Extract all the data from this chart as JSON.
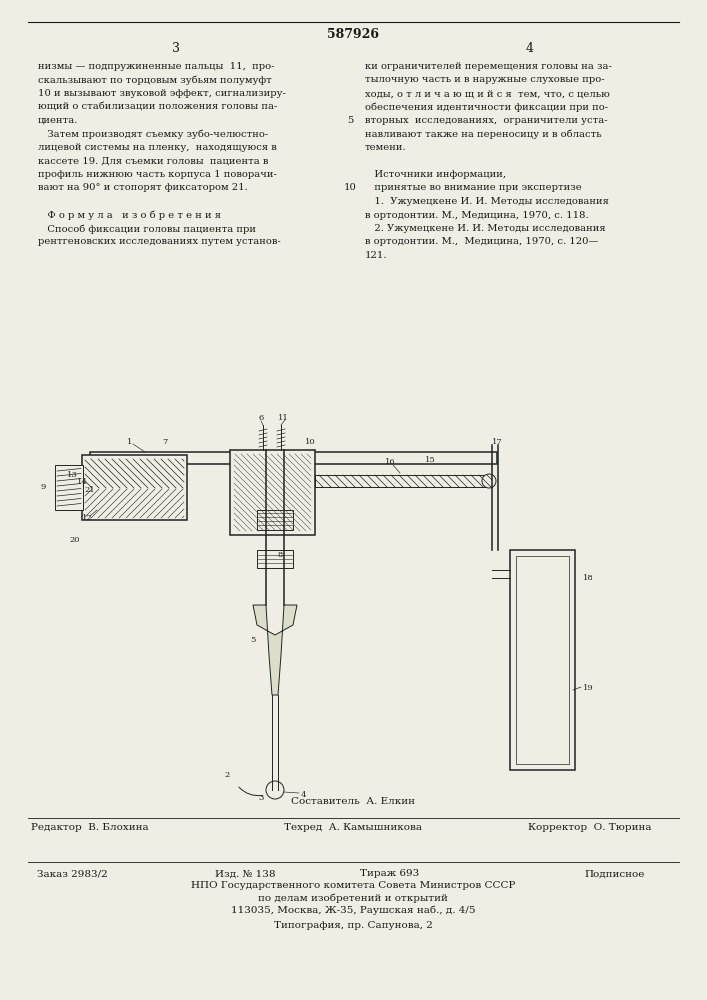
{
  "patent_number": "587926",
  "page_left": "3",
  "page_right": "4",
  "bg_color": "#f0ede4",
  "text_color": "#1a1a1a",
  "col_left_text": [
    "низмы — подпружиненные пальцы  11,  про-",
    "скальзывают по торцовым зубьям полумуфт",
    "10 и вызывают звуковой эффект, сигнализиру-",
    "ющий о стабилизации положения головы па-",
    "циента.",
    "   Затем производят съемку зубо-челюстно-",
    "лицевой системы на пленку,  находящуюся в",
    "кассете 19. Для съемки головы  пациента в",
    "профиль нижнюю часть корпуса 1 поворачи-",
    "вают на 90° и стопорят фиксатором 21.",
    "",
    "   Ф о р м у л а   и з о б р е т е н и я",
    "   Способ фиксации головы пациента при",
    "рентгеновских исследованиях путем установ-"
  ],
  "col_right_text": [
    "ки ограничителей перемещения головы на за-",
    "тылочную часть и в наружные слуховые про-",
    "ходы, о т л и ч а ю щ и й с я  тем, что, с целью",
    "обеспечения идентичности фиксации при по-",
    "вторных  исследованиях,  ограничители уста-",
    "навливают также на переносицу и в область",
    "темени.",
    "",
    "   Источники информации,",
    "   принятые во внимание при экспертизе",
    "   1.  Ужумецкене И. И. Методы исследования",
    "в ортодонтии. М., Медицина, 1970, с. 118.",
    "   2. Ужумецкене И. И. Методы исследования",
    "в ортодонтии. М.,  Медицина, 1970, с. 120—",
    "121."
  ],
  "footer_sestavitel": "Составитель  А. Елкин",
  "footer_redaktor": "Редактор  В. Блохина",
  "footer_tehred": "Техред  А. Камышникова",
  "footer_korrektor": "Корректор  О. Тюрина",
  "footer_zakaz": "Заказ 2983/2",
  "footer_izd": "Изд. № 138",
  "footer_tirazh": "Тираж 693",
  "footer_podpisnoe": "Подписное",
  "footer_npo": "НПО Государственного комитета Совета Министров СССР",
  "footer_dela": "по делам изобретений и открытий",
  "footer_addr": "113035, Москва, Ж-35, Раушская наб., д. 4/5",
  "footer_tipografia": "Типография, пр. Сапунова, 2"
}
